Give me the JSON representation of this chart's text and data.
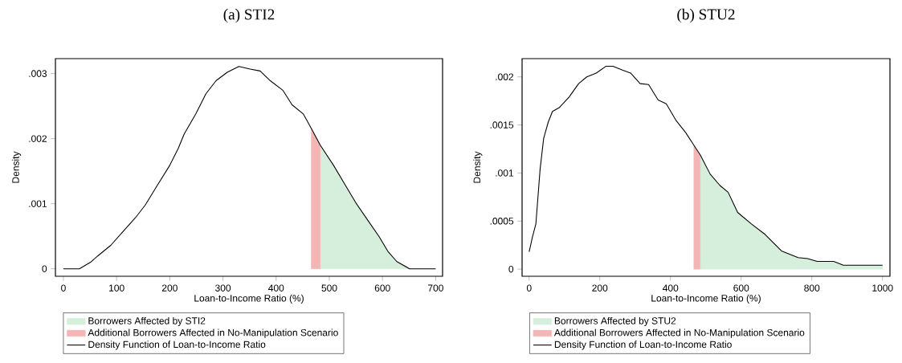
{
  "chart_data": [
    {
      "type": "area",
      "title": "(a) STI2",
      "xlabel": "Loan-to-Income Ratio (%)",
      "ylabel": "Density",
      "xlim": [
        -15,
        713
      ],
      "ylim": [
        -0.000115,
        0.00323
      ],
      "xticks": [
        0,
        100,
        200,
        300,
        400,
        500,
        600,
        700
      ],
      "yticks": [
        0,
        {
          "value": 0.001,
          "label": ".001"
        },
        {
          "value": 0.002,
          "label": ".002"
        },
        {
          "value": 0.003,
          "label": ".003"
        }
      ],
      "legend": "bottom",
      "series": [
        {
          "name": "Borrowers Affected by STI2",
          "color": "#d6eedc",
          "x": [
            483,
            508,
            529,
            551,
            572,
            594,
            610,
            627,
            651,
            700
          ],
          "values": [
            0.0019,
            0.00159,
            0.0013,
            0.001,
            0.00075,
            0.00049,
            0.00027,
            0.00011,
            0,
            0
          ]
        },
        {
          "name": "Additional Borrowers Affected in No-Manipulation Scenario",
          "color": "#f5b5b5",
          "x": [
            466,
            483
          ],
          "values": [
            0.00216,
            0.0019
          ]
        },
        {
          "name": "Density Function of Loan-to-Income Ratio",
          "type": "line",
          "color": "#000000",
          "x": [
            0,
            30,
            51,
            65,
            89,
            113,
            135,
            154,
            175,
            200,
            216,
            227,
            249,
            268,
            287,
            308,
            330,
            351,
            370,
            389,
            413,
            430,
            451,
            466,
            483,
            508,
            529,
            551,
            572,
            594,
            610,
            627,
            651,
            700
          ],
          "values": [
            0,
            0,
            0.0001,
            0.0002,
            0.00036,
            0.00058,
            0.00078,
            0.00098,
            0.00126,
            0.00159,
            0.00185,
            0.00207,
            0.00238,
            0.00269,
            0.00289,
            0.00302,
            0.00311,
            0.00307,
            0.00304,
            0.00289,
            0.00274,
            0.00252,
            0.00238,
            0.00216,
            0.0019,
            0.00159,
            0.0013,
            0.001,
            0.00075,
            0.00049,
            0.00027,
            0.00011,
            0,
            0
          ]
        }
      ]
    },
    {
      "type": "area",
      "title": "(b) STU2",
      "xlabel": "Loan-to-Income Ratio (%)",
      "ylabel": "Density",
      "xlim": [
        -20,
        1021
      ],
      "ylim": [
        -7.4e-05,
        0.00219
      ],
      "xticks": [
        0,
        200,
        400,
        600,
        800,
        1000
      ],
      "yticks": [
        0,
        {
          "value": 0.0005,
          "label": ".0005"
        },
        {
          "value": 0.001,
          "label": ".001"
        },
        {
          "value": 0.0015,
          "label": ".0015"
        },
        {
          "value": 0.002,
          "label": ".002"
        }
      ],
      "legend": "bottom",
      "series": [
        {
          "name": "Borrowers Affected by STU2",
          "color": "#d6eedc",
          "x": [
            484,
            512,
            540,
            563,
            590,
            629,
            668,
            714,
            761,
            788,
            815,
            862,
            889,
            1000
          ],
          "values": [
            0.00119,
            0.00099,
            0.00087,
            0.0008,
            0.00059,
            0.00047,
            0.00036,
            0.00019,
            0.00012,
            0.00011,
            8e-05,
            8e-05,
            4e-05,
            4e-05
          ]
        },
        {
          "name": "Additional Borrowers Affected in No-Manipulation Scenario",
          "color": "#f5b5b5",
          "x": [
            466,
            484
          ],
          "values": [
            0.00129,
            0.00119
          ]
        },
        {
          "name": "Density Function of Loan-to-Income Ratio",
          "type": "line",
          "color": "#000000",
          "x": [
            0,
            9,
            19,
            31,
            41,
            54,
            66,
            85,
            113,
            140,
            163,
            190,
            217,
            237,
            264,
            287,
            314,
            338,
            365,
            388,
            415,
            443,
            466,
            484,
            512,
            540,
            563,
            590,
            629,
            668,
            714,
            761,
            788,
            815,
            862,
            889,
            1000
          ],
          "values": [
            0.00018,
            0.00033,
            0.00047,
            0.00104,
            0.00136,
            0.00153,
            0.00164,
            0.00168,
            0.00179,
            0.00193,
            0.002,
            0.00204,
            0.00211,
            0.00211,
            0.00207,
            0.00204,
            0.00193,
            0.00192,
            0.00176,
            0.00172,
            0.00155,
            0.00142,
            0.00129,
            0.00119,
            0.00099,
            0.00087,
            0.0008,
            0.00059,
            0.00047,
            0.00036,
            0.00019,
            0.00012,
            0.00011,
            8e-05,
            8e-05,
            4e-05,
            4e-05
          ]
        }
      ]
    }
  ]
}
